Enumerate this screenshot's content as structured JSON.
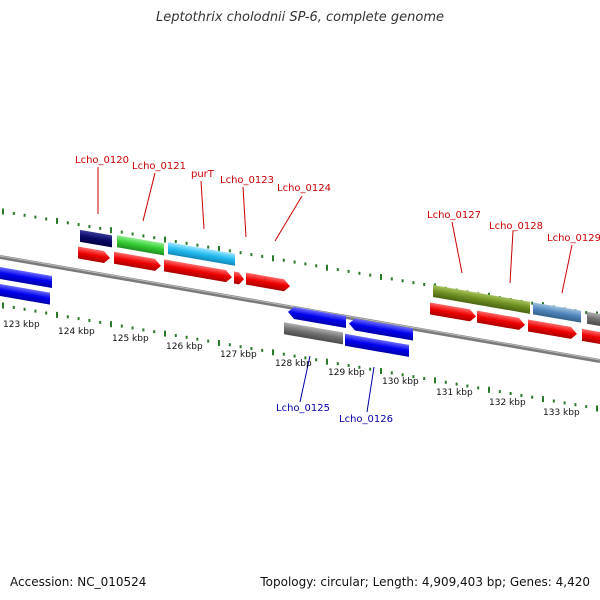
{
  "title": "Leptothrix cholodnii SP-6, complete genome",
  "footer": {
    "accession": "Accession: NC_010524",
    "summary": "Topology: circular; Length: 4,909,403 bp; Genes: 4,420"
  },
  "colors": {
    "label_forward": "#cc0000",
    "label_reverse": "#0000aa",
    "tick": "#2a7a2a",
    "backbone": "#8a8a8a"
  },
  "scale": {
    "unit": "kbp",
    "labels": [
      "123 kbp",
      "124 kbp",
      "125 kbp",
      "126 kbp",
      "127 kbp",
      "128 kbp",
      "129 kbp",
      "130 kbp",
      "131 kbp",
      "132 kbp",
      "133 kbp"
    ]
  },
  "gene_labels_forward": [
    "Lcho_0120",
    "Lcho_0121",
    "purT",
    "Lcho_0123",
    "Lcho_0124",
    "Lcho_0127",
    "Lcho_0128",
    "Lcho_0129"
  ],
  "gene_labels_reverse": [
    "Lcho_0125",
    "Lcho_0126"
  ]
}
